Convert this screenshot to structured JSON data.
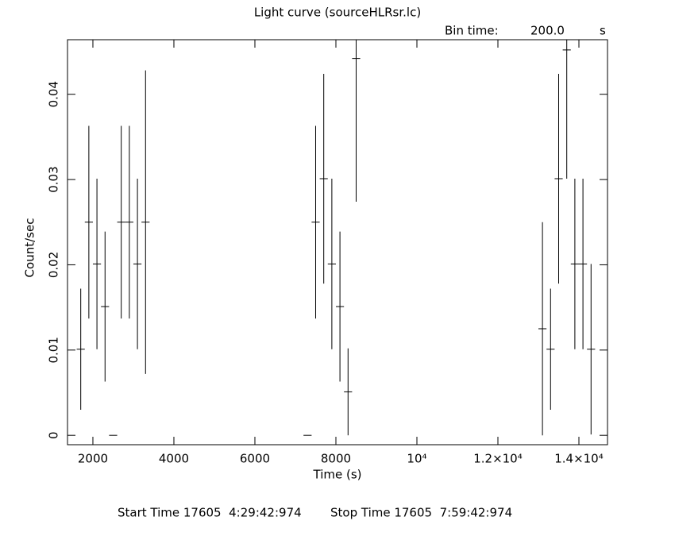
{
  "chart_data": {
    "type": "errorbar",
    "title": "Light curve (sourceHLRsr.lc)",
    "bin_time_label": "Bin time:",
    "bin_time": "200.0",
    "bin_time_unit": "s",
    "x_label": "Time (s)",
    "y_label": "Count/sec",
    "start_time": "Start Time 17605  4:29:42:974",
    "stop_time": "Stop Time 17605  7:59:42:974",
    "xlim": [
      1373,
      14706
    ],
    "ylim": [
      -0.0011,
      0.0464
    ],
    "xticks": [
      2000,
      4000,
      6000,
      8000,
      {
        "value": 10000,
        "label": "10⁴"
      },
      {
        "value": 12000,
        "label": "1.2×10⁴"
      },
      {
        "value": 14000,
        "label": "1.4×10⁴"
      }
    ],
    "yticks": [
      0,
      0.01,
      0.02,
      0.03,
      0.04
    ],
    "series": [
      {
        "color": "#000000",
        "x": [
          1700,
          1900,
          2100,
          2300,
          2500,
          2700,
          2900,
          3100,
          3300,
          7300,
          7500,
          7700,
          7900,
          8100,
          8300,
          8500,
          13100,
          13300,
          13500,
          13700,
          13900,
          14100,
          14300
        ],
        "x_errors": [
          100,
          100,
          100,
          100,
          100,
          100,
          100,
          100,
          100,
          100,
          100,
          100,
          100,
          100,
          100,
          100,
          100,
          100,
          100,
          100,
          100,
          100,
          100
        ],
        "values": [
          0.0101,
          0.025,
          0.0201,
          0.0151,
          0,
          0.025,
          0.025,
          0.0201,
          0.025,
          0,
          0.025,
          0.0301,
          0.0201,
          0.0151,
          0.0051,
          0.0442,
          0.0125,
          0.0101,
          0.0301,
          0.0452,
          0.0201,
          0.0201,
          0.0101
        ],
        "errors": [
          0.0071,
          0.0113,
          0.01,
          0.0088,
          0,
          0.0113,
          0.0113,
          0.01,
          0.0178,
          0,
          0.0113,
          0.0123,
          0.01,
          0.0088,
          0.0051,
          0.0168,
          0.0125,
          0.0071,
          0.0123,
          0.0151,
          0.01,
          0.01,
          0.01
        ]
      }
    ]
  }
}
